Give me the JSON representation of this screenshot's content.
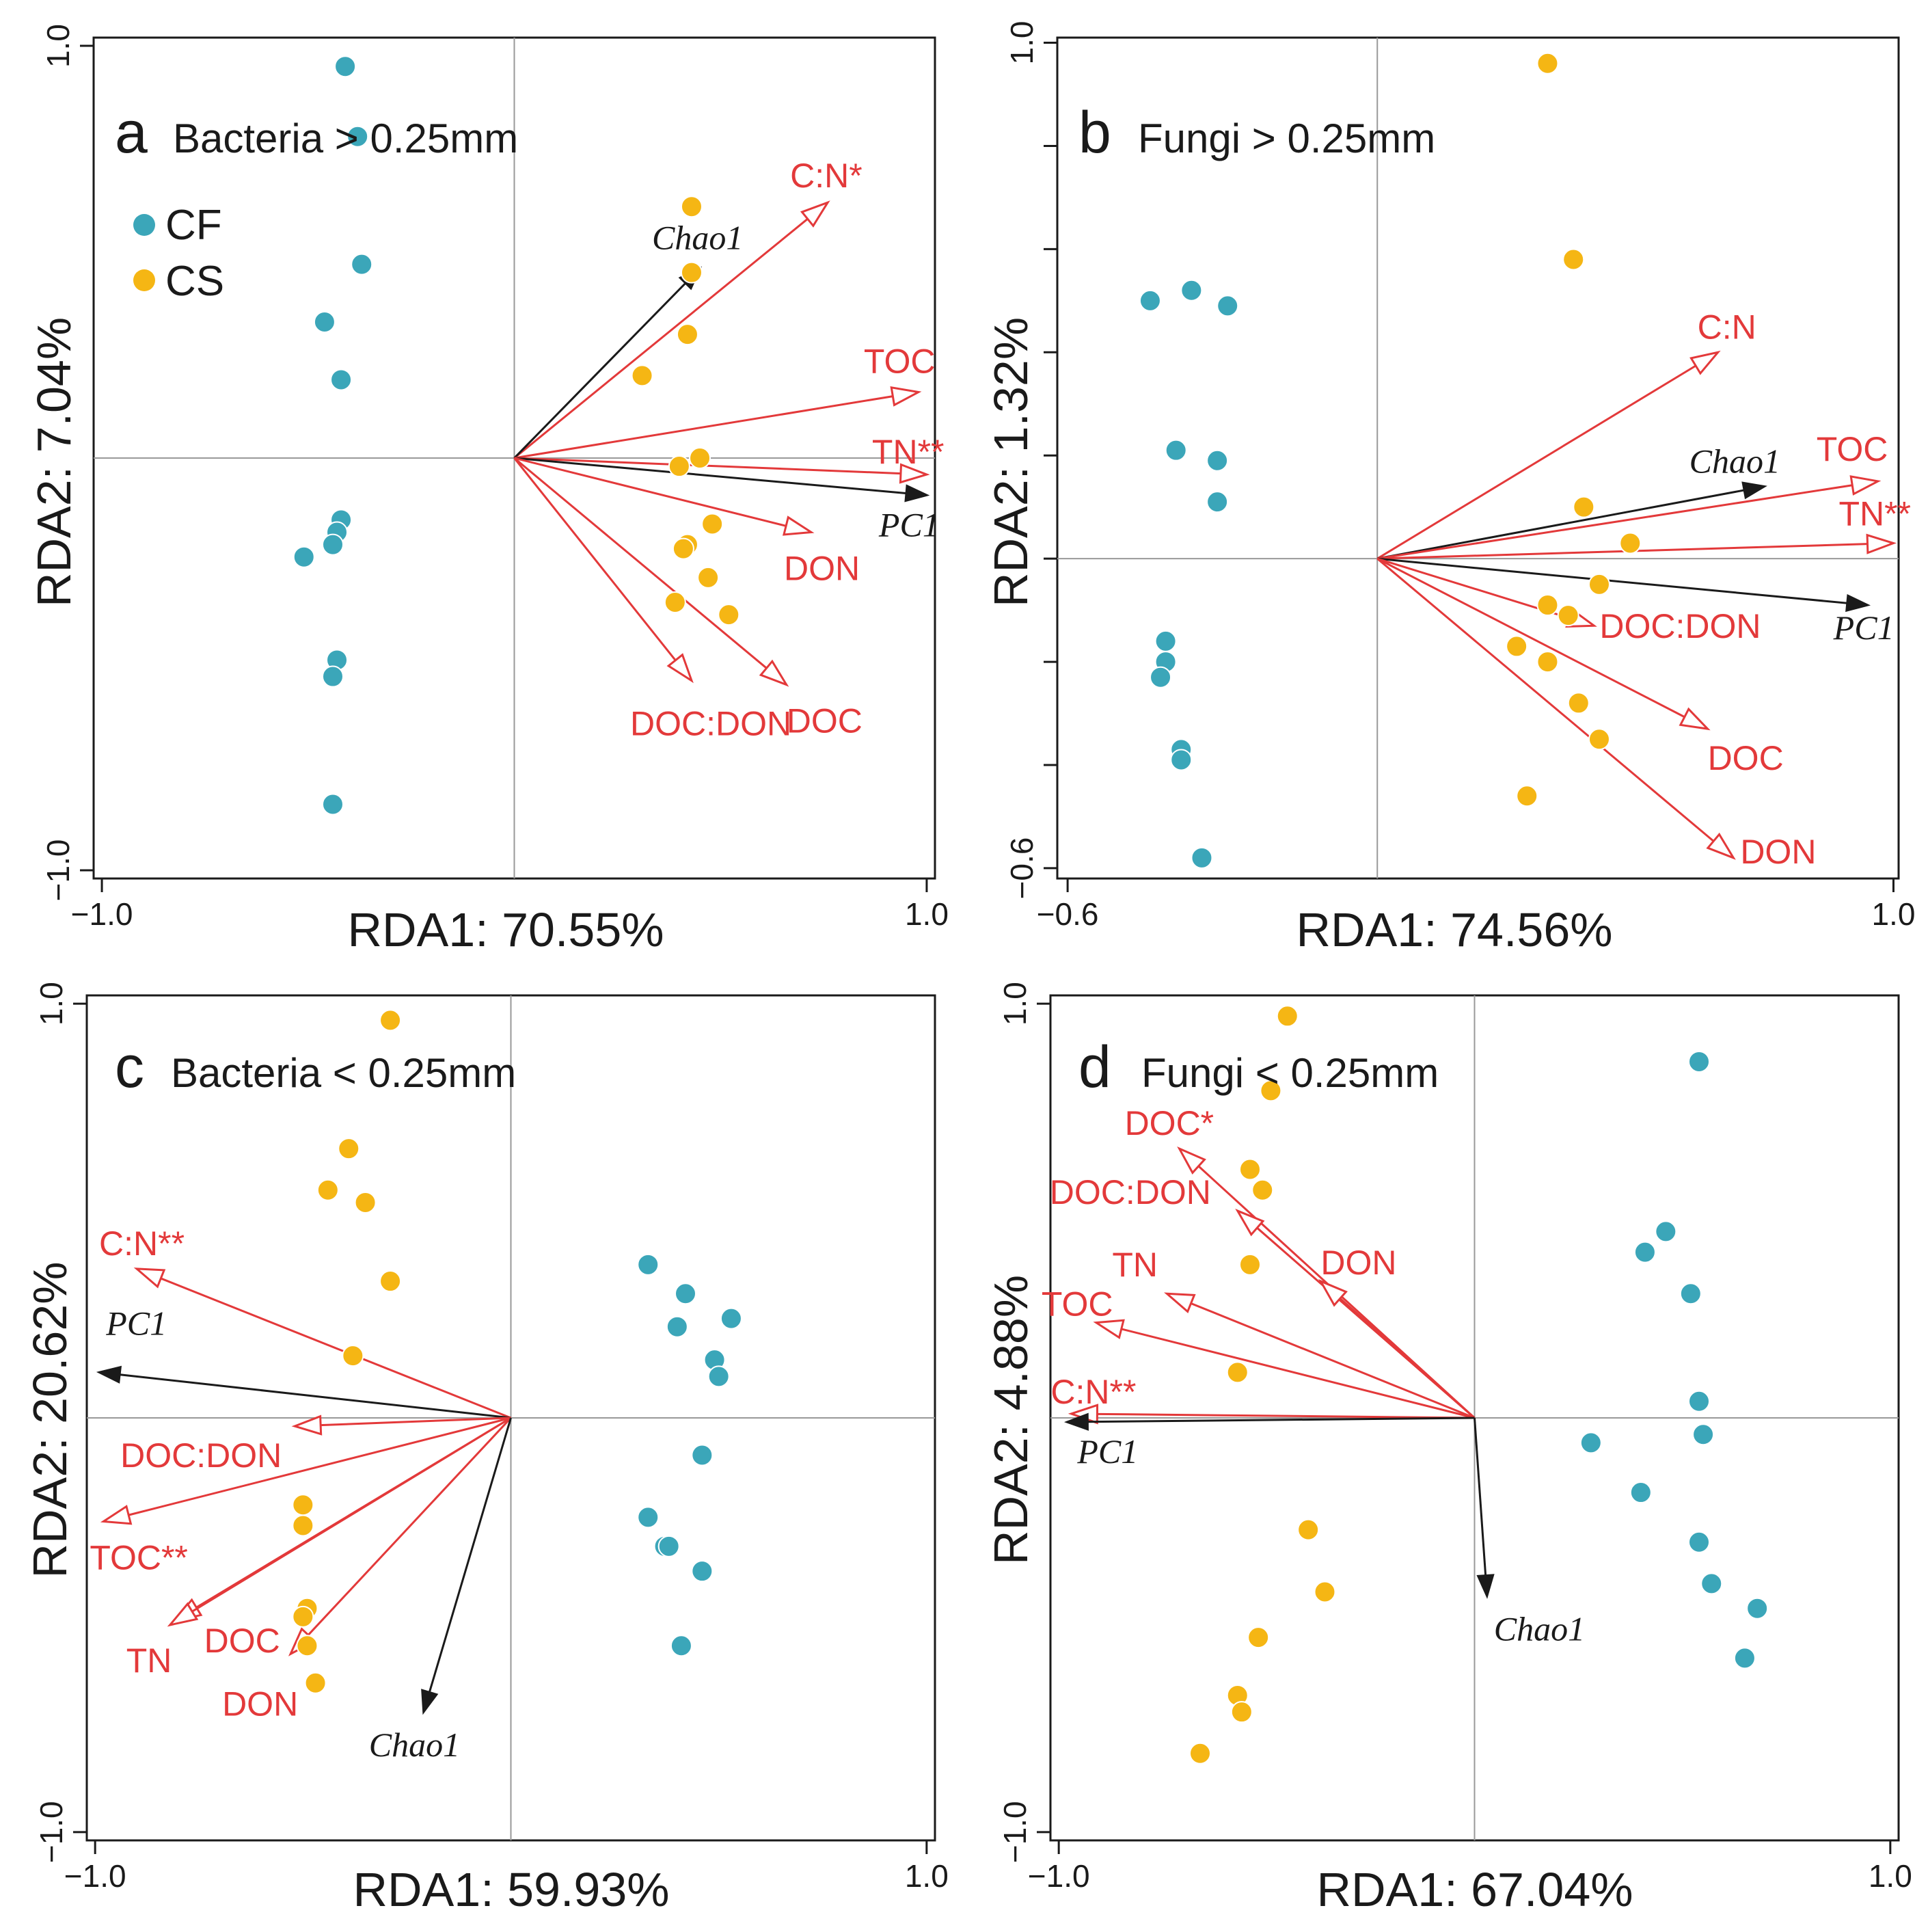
{
  "colors": {
    "cf": "#3ba6b9",
    "cs": "#f5b614",
    "env": "#e3393a",
    "black": "#1a1a1a",
    "axis": "#999999"
  },
  "legend": {
    "cf": "CF",
    "cs": "CS"
  },
  "chart_data": [
    {
      "type": "scatter",
      "panel": "a",
      "title": "Bacteria > 0.25mm",
      "xlabel": "RDA1: 70.55%",
      "ylabel": "RDA2: 7.04%",
      "xlim": [
        -1.02,
        1.02
      ],
      "ylim": [
        -1.02,
        1.02
      ],
      "xticks": [
        -1.0,
        1.0
      ],
      "yticks": [
        -1.0,
        1.0
      ],
      "xtick_labels": [
        "−1.0",
        "1.0"
      ],
      "ytick_labels": [
        "−1.0",
        "1.0"
      ],
      "show_minor_yticks": false,
      "legend": true,
      "series": [
        {
          "name": "CF",
          "points": [
            [
              -0.41,
              0.95
            ],
            [
              -0.38,
              0.78
            ],
            [
              -0.37,
              0.47
            ],
            [
              -0.46,
              0.33
            ],
            [
              -0.42,
              0.19
            ],
            [
              -0.42,
              -0.15
            ],
            [
              -0.43,
              -0.18
            ],
            [
              -0.44,
              -0.21
            ],
            [
              -0.51,
              -0.24
            ],
            [
              -0.43,
              -0.49
            ],
            [
              -0.44,
              -0.53
            ],
            [
              -0.44,
              -0.84
            ]
          ]
        },
        {
          "name": "CS",
          "points": [
            [
              0.43,
              0.61
            ],
            [
              0.43,
              0.45
            ],
            [
              0.42,
              0.3
            ],
            [
              0.31,
              0.2
            ],
            [
              0.45,
              0.0
            ],
            [
              0.4,
              -0.02
            ],
            [
              0.48,
              -0.16
            ],
            [
              0.42,
              -0.21
            ],
            [
              0.41,
              -0.22
            ],
            [
              0.47,
              -0.29
            ],
            [
              0.39,
              -0.35
            ],
            [
              0.52,
              -0.38
            ]
          ]
        }
      ],
      "vectors": [
        {
          "label": "C:N*",
          "color": "env",
          "x": 0.76,
          "y": 0.62
        },
        {
          "label": "Chao1",
          "color": "black",
          "x": 0.45,
          "y": 0.46
        },
        {
          "label": "TOC",
          "color": "env",
          "x": 0.98,
          "y": 0.16
        },
        {
          "label": "TN**",
          "color": "env",
          "x": 1.0,
          "y": -0.04
        },
        {
          "label": "PC1",
          "color": "black",
          "x": 1.0,
          "y": -0.09
        },
        {
          "label": "DON",
          "color": "env",
          "x": 0.72,
          "y": -0.18
        },
        {
          "label": "DOC",
          "color": "env",
          "x": 0.66,
          "y": -0.55
        },
        {
          "label": "DOC:DON",
          "color": "env",
          "x": 0.43,
          "y": -0.54
        }
      ]
    },
    {
      "type": "scatter",
      "panel": "b",
      "title": "Fungi > 0.25mm",
      "xlabel": "RDA1: 74.56%",
      "ylabel": "RDA2: 1.32%",
      "xlim": [
        -0.62,
        1.01
      ],
      "ylim": [
        -0.62,
        1.01
      ],
      "xticks": [
        -0.6,
        1.0
      ],
      "yticks": [
        -0.6,
        1.0
      ],
      "xtick_labels": [
        "−0.6",
        "1.0"
      ],
      "ytick_labels": [
        "−0.6",
        "1.0"
      ],
      "show_minor_yticks": true,
      "legend": false,
      "series": [
        {
          "name": "CF",
          "points": [
            [
              -0.44,
              0.5
            ],
            [
              -0.36,
              0.52
            ],
            [
              -0.29,
              0.49
            ],
            [
              -0.39,
              0.21
            ],
            [
              -0.31,
              0.19
            ],
            [
              -0.31,
              0.11
            ],
            [
              -0.41,
              -0.16
            ],
            [
              -0.41,
              -0.2
            ],
            [
              -0.42,
              -0.23
            ],
            [
              -0.38,
              -0.37
            ],
            [
              -0.38,
              -0.39
            ],
            [
              -0.34,
              -0.58
            ]
          ]
        },
        {
          "name": "CS",
          "points": [
            [
              0.33,
              0.96
            ],
            [
              0.38,
              0.58
            ],
            [
              0.4,
              0.1
            ],
            [
              0.49,
              0.03
            ],
            [
              0.43,
              -0.05
            ],
            [
              0.33,
              -0.09
            ],
            [
              0.37,
              -0.11
            ],
            [
              0.27,
              -0.17
            ],
            [
              0.33,
              -0.2
            ],
            [
              0.39,
              -0.28
            ],
            [
              0.43,
              -0.35
            ],
            [
              0.29,
              -0.46
            ]
          ]
        }
      ],
      "vectors": [
        {
          "label": "C:N",
          "color": "env",
          "x": 0.66,
          "y": 0.4
        },
        {
          "label": "Chao1",
          "color": "black",
          "x": 0.75,
          "y": 0.14
        },
        {
          "label": "TOC",
          "color": "env",
          "x": 0.97,
          "y": 0.15
        },
        {
          "label": "TN**",
          "color": "env",
          "x": 1.0,
          "y": 0.03
        },
        {
          "label": "PC1",
          "color": "black",
          "x": 0.95,
          "y": -0.09
        },
        {
          "label": "DOC:DON",
          "color": "env",
          "x": 0.42,
          "y": -0.13
        },
        {
          "label": "DOC",
          "color": "env",
          "x": 0.64,
          "y": -0.33
        },
        {
          "label": "DON",
          "color": "env",
          "x": 0.69,
          "y": -0.58
        }
      ]
    },
    {
      "type": "scatter",
      "panel": "c",
      "title": "Bacteria < 0.25mm",
      "xlabel": "RDA1: 59.93%",
      "ylabel": "RDA2: 20.62%",
      "xlim": [
        -1.02,
        1.02
      ],
      "ylim": [
        -1.02,
        1.02
      ],
      "xticks": [
        -1.0,
        1.0
      ],
      "yticks": [
        -1.0,
        1.0
      ],
      "xtick_labels": [
        "−1.0",
        "1.0"
      ],
      "ytick_labels": [
        "−1.0",
        "1.0"
      ],
      "show_minor_yticks": false,
      "legend": false,
      "series": [
        {
          "name": "CF",
          "points": [
            [
              0.33,
              0.37
            ],
            [
              0.42,
              0.3
            ],
            [
              0.4,
              0.22
            ],
            [
              0.53,
              0.24
            ],
            [
              0.49,
              0.14
            ],
            [
              0.5,
              0.1
            ],
            [
              0.46,
              -0.09
            ],
            [
              0.33,
              -0.24
            ],
            [
              0.37,
              -0.31
            ],
            [
              0.38,
              -0.31
            ],
            [
              0.46,
              -0.37
            ],
            [
              0.41,
              -0.55
            ]
          ]
        },
        {
          "name": "CS",
          "points": [
            [
              -0.29,
              0.96
            ],
            [
              -0.39,
              0.65
            ],
            [
              -0.44,
              0.55
            ],
            [
              -0.35,
              0.52
            ],
            [
              -0.29,
              0.33
            ],
            [
              -0.38,
              0.15
            ],
            [
              -0.5,
              -0.21
            ],
            [
              -0.5,
              -0.26
            ],
            [
              -0.49,
              -0.46
            ],
            [
              -0.5,
              -0.48
            ],
            [
              -0.49,
              -0.55
            ],
            [
              -0.47,
              -0.64
            ]
          ]
        }
      ],
      "vectors": [
        {
          "label": "C:N**",
          "color": "env",
          "x": -0.9,
          "y": 0.36
        },
        {
          "label": "PC1",
          "color": "black",
          "x": -0.99,
          "y": 0.11
        },
        {
          "label": "DOC:DON",
          "color": "env",
          "x": -0.52,
          "y": -0.02
        },
        {
          "label": "TOC**",
          "color": "env",
          "x": -0.98,
          "y": -0.25
        },
        {
          "label": "TN",
          "color": "env",
          "x": -0.81,
          "y": -0.49
        },
        {
          "label": "DOC",
          "color": "env",
          "x": -0.82,
          "y": -0.5
        },
        {
          "label": "DON",
          "color": "env",
          "x": -0.53,
          "y": -0.57
        },
        {
          "label": "Chao1",
          "color": "black",
          "x": -0.21,
          "y": -0.71
        }
      ]
    },
    {
      "type": "scatter",
      "panel": "d",
      "title": "Fungi < 0.25mm",
      "xlabel": "RDA1: 67.04%",
      "ylabel": "RDA2: 4.88%",
      "xlim": [
        -1.02,
        1.02
      ],
      "ylim": [
        -1.02,
        1.02
      ],
      "xticks": [
        -1.0,
        1.0
      ],
      "yticks": [
        -1.0,
        1.0
      ],
      "xtick_labels": [
        "−1.0",
        "1.0"
      ],
      "ytick_labels": [
        "−1.0",
        "1.0"
      ],
      "show_minor_yticks": false,
      "legend": false,
      "series": [
        {
          "name": "CF",
          "points": [
            [
              0.54,
              0.86
            ],
            [
              0.46,
              0.45
            ],
            [
              0.41,
              0.4
            ],
            [
              0.52,
              0.3
            ],
            [
              0.54,
              0.04
            ],
            [
              0.55,
              -0.04
            ],
            [
              0.28,
              -0.06
            ],
            [
              0.4,
              -0.18
            ],
            [
              0.54,
              -0.3
            ],
            [
              0.57,
              -0.4
            ],
            [
              0.68,
              -0.46
            ],
            [
              0.65,
              -0.58
            ]
          ]
        },
        {
          "name": "CS",
          "points": [
            [
              -0.45,
              0.97
            ],
            [
              -0.49,
              0.79
            ],
            [
              -0.54,
              0.6
            ],
            [
              -0.51,
              0.55
            ],
            [
              -0.54,
              0.37
            ],
            [
              -0.57,
              0.11
            ],
            [
              -0.4,
              -0.27
            ],
            [
              -0.36,
              -0.42
            ],
            [
              -0.52,
              -0.53
            ],
            [
              -0.57,
              -0.67
            ],
            [
              -0.56,
              -0.71
            ],
            [
              -0.66,
              -0.81
            ]
          ]
        }
      ],
      "vectors": [
        {
          "label": "DOC*",
          "color": "env",
          "x": -0.71,
          "y": 0.65
        },
        {
          "label": "DOC:DON",
          "color": "env",
          "x": -0.57,
          "y": 0.5
        },
        {
          "label": "DON",
          "color": "env",
          "x": -0.37,
          "y": 0.33
        },
        {
          "label": "TN",
          "color": "env",
          "x": -0.74,
          "y": 0.3
        },
        {
          "label": "TOC",
          "color": "env",
          "x": -0.91,
          "y": 0.23
        },
        {
          "label": "C:N**",
          "color": "env",
          "x": -0.97,
          "y": 0.01
        },
        {
          "label": "PC1",
          "color": "black",
          "x": -0.98,
          "y": -0.01
        },
        {
          "label": "Chao1",
          "color": "black",
          "x": 0.03,
          "y": -0.43
        }
      ]
    }
  ]
}
